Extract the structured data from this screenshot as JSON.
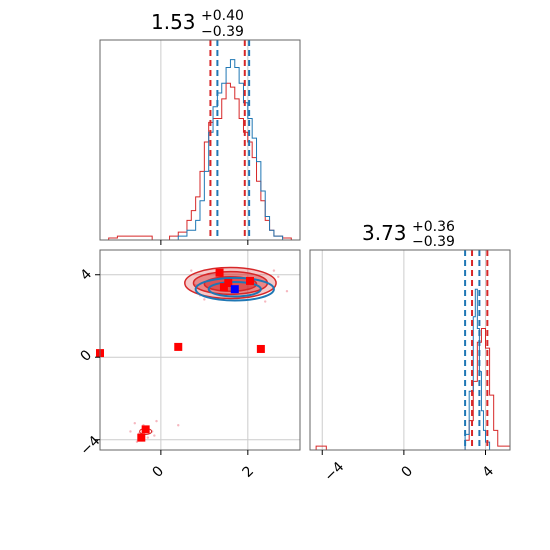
{
  "chart_data": {
    "type": "corner",
    "colors": {
      "red": "#d62728",
      "blue": "#1f77b4",
      "grid": "#cccccc",
      "marker_red": "#ff0000",
      "marker_blue": "#0000ff"
    },
    "panels": [
      {
        "id": "hist-param1",
        "type": "histogram",
        "title": {
          "value": "1.53",
          "plus": "+0.40",
          "minus": "−0.39"
        },
        "xlim": [
          -1.4,
          3.2
        ],
        "grid_x": [
          0,
          2
        ],
        "quantiles": {
          "red": [
            1.14,
            1.93
          ],
          "blue": [
            1.3,
            2.03
          ]
        },
        "series": [
          {
            "name": "red",
            "x": [
              -1.4,
              -1.2,
              -1.0,
              -0.8,
              -0.6,
              -0.4,
              -0.2,
              0.0,
              0.2,
              0.4,
              0.6,
              0.7,
              0.8,
              0.9,
              1.0,
              1.1,
              1.2,
              1.3,
              1.4,
              1.5,
              1.6,
              1.7,
              1.8,
              1.9,
              2.0,
              2.1,
              2.2,
              2.3,
              2.4,
              2.5,
              2.6,
              2.8,
              3.0,
              3.2
            ],
            "y": [
              0.0,
              0.01,
              0.02,
              0.02,
              0.02,
              0.02,
              0.0,
              0.0,
              0.02,
              0.04,
              0.1,
              0.15,
              0.22,
              0.35,
              0.5,
              0.6,
              0.62,
              0.62,
              0.72,
              0.8,
              0.78,
              0.72,
              0.62,
              0.55,
              0.5,
              0.42,
              0.3,
              0.2,
              0.1,
              0.05,
              0.02,
              0.01,
              0.0,
              0.0
            ]
          },
          {
            "name": "blue",
            "x": [
              -1.4,
              0.0,
              0.4,
              0.6,
              0.8,
              0.9,
              1.0,
              1.1,
              1.2,
              1.3,
              1.4,
              1.5,
              1.6,
              1.7,
              1.8,
              1.9,
              2.0,
              2.1,
              2.2,
              2.3,
              2.4,
              2.5,
              2.6,
              2.8,
              3.2
            ],
            "y": [
              0.0,
              0.0,
              0.02,
              0.05,
              0.1,
              0.2,
              0.35,
              0.55,
              0.68,
              0.75,
              0.8,
              0.88,
              0.92,
              0.88,
              0.8,
              0.7,
              0.62,
              0.52,
              0.4,
              0.25,
              0.12,
              0.05,
              0.02,
              0.0,
              0.0
            ]
          }
        ]
      },
      {
        "id": "hist-param2",
        "type": "histogram",
        "title": {
          "value": "3.73",
          "plus": "+0.36",
          "minus": "−0.39"
        },
        "xlim": [
          -4.6,
          5.2
        ],
        "grid_x": [
          -4,
          0,
          4
        ],
        "quantiles": {
          "red": [
            3.34,
            4.09
          ],
          "blue": [
            3.0,
            3.7
          ]
        },
        "series": [
          {
            "name": "red",
            "x": [
              -4.6,
              -4.3,
              -4.0,
              -3.8,
              -3.0,
              2.8,
              3.0,
              3.2,
              3.4,
              3.6,
              3.8,
              4.0,
              4.2,
              4.4,
              4.6,
              5.2
            ],
            "y": [
              0.0,
              0.02,
              0.02,
              0.0,
              0.0,
              0.0,
              0.05,
              0.15,
              0.35,
              0.55,
              0.62,
              0.52,
              0.28,
              0.1,
              0.02,
              0.0
            ]
          },
          {
            "name": "blue",
            "x": [
              -4.6,
              2.8,
              3.0,
              3.2,
              3.4,
              3.5,
              3.6,
              3.7,
              3.8,
              3.9,
              4.0,
              4.2,
              5.2
            ],
            "y": [
              0.0,
              0.0,
              0.08,
              0.3,
              0.68,
              0.82,
              0.62,
              0.4,
              0.2,
              0.1,
              0.04,
              0.0,
              0.0
            ]
          }
        ]
      },
      {
        "id": "scatter-2d",
        "type": "scatter_contour",
        "xlim": [
          -1.4,
          3.2
        ],
        "ylim": [
          -4.5,
          5.2
        ],
        "grid_x": [
          0,
          2
        ],
        "grid_y": [
          -4,
          0,
          4
        ],
        "x_tick_labels": [
          "0",
          "2"
        ],
        "y_tick_labels": [
          "−4",
          "0",
          "4"
        ],
        "contours": {
          "red": [
            {
              "cx": 1.6,
              "cy": 3.6,
              "rx": 1.05,
              "ry": 0.75
            },
            {
              "cx": 1.6,
              "cy": 3.6,
              "rx": 0.85,
              "ry": 0.55
            },
            {
              "cx": 1.6,
              "cy": 3.55,
              "rx": 0.6,
              "ry": 0.35
            }
          ],
          "blue": [
            {
              "cx": 1.7,
              "cy": 3.3,
              "rx": 0.9,
              "ry": 0.55
            },
            {
              "cx": 1.7,
              "cy": 3.3,
              "rx": 0.6,
              "ry": 0.35
            }
          ]
        },
        "markers": {
          "red": [
            {
              "x": 1.35,
              "y": 4.1
            },
            {
              "x": 1.55,
              "y": 3.6
            },
            {
              "x": 2.05,
              "y": 3.7
            },
            {
              "x": 1.45,
              "y": 3.4
            },
            {
              "x": 0.4,
              "y": 0.5
            },
            {
              "x": 2.3,
              "y": 0.4
            },
            {
              "x": -0.35,
              "y": -3.5
            },
            {
              "x": -0.45,
              "y": -3.9
            },
            {
              "x": -1.4,
              "y": 0.2
            }
          ],
          "blue": [
            {
              "x": 1.7,
              "y": 3.3
            }
          ]
        },
        "points": [
          [
            -0.6,
            -3.2
          ],
          [
            -0.4,
            -3.3
          ],
          [
            -0.2,
            -3.6
          ],
          [
            -0.5,
            -3.7
          ],
          [
            -0.3,
            -3.9
          ],
          [
            -0.7,
            -3.6
          ],
          [
            0.4,
            -3.3
          ],
          [
            -0.1,
            -3.1
          ],
          [
            -0.55,
            -4.1
          ],
          [
            -0.15,
            -3.8
          ],
          [
            0.7,
            4.2
          ],
          [
            0.8,
            3.5
          ],
          [
            2.7,
            3.9
          ],
          [
            2.9,
            3.2
          ],
          [
            1.0,
            2.8
          ],
          [
            2.4,
            2.7
          ],
          [
            0.9,
            3.0
          ],
          [
            2.6,
            4.2
          ]
        ]
      }
    ],
    "axes_tick_labels": {
      "param2_x": [
        "−4",
        "0",
        "4"
      ]
    }
  }
}
